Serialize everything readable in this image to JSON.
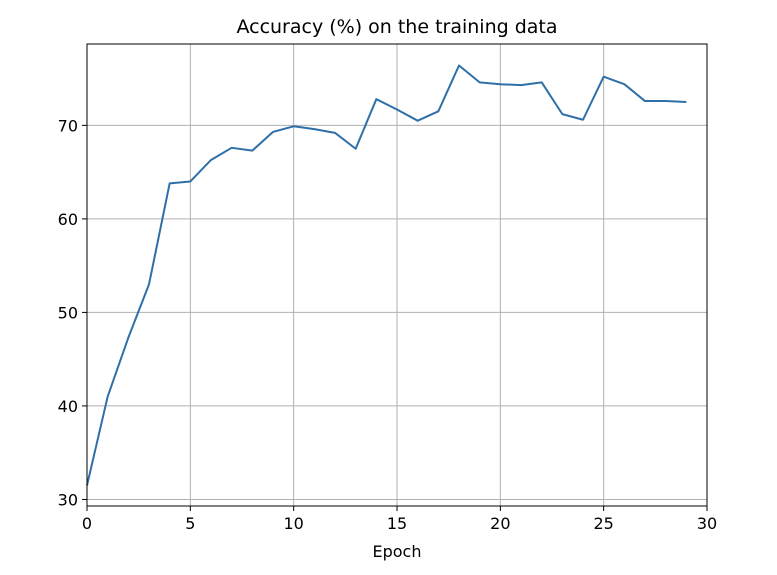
{
  "chart_data": {
    "type": "line",
    "title": "Accuracy (%) on the training data",
    "xlabel": "Epoch",
    "ylabel": "",
    "xlim": [
      0,
      30
    ],
    "ylim": [
      29.3,
      78.7
    ],
    "xticks": [
      0,
      5,
      10,
      15,
      20,
      25,
      30
    ],
    "yticks": [
      30,
      40,
      50,
      60,
      70
    ],
    "grid": true,
    "legend": false,
    "colors": {
      "series": "#2f6fa8",
      "grid": "#b0b0b0",
      "axes": "#000000",
      "background": "#ffffff"
    },
    "series": [
      {
        "x": [
          0,
          1,
          2,
          3,
          4,
          5,
          6,
          7,
          8,
          9,
          10,
          11,
          12,
          13,
          14,
          15,
          16,
          17,
          18,
          19,
          20,
          21,
          22,
          23,
          24,
          25,
          26,
          27,
          28,
          29
        ],
        "values": [
          31.5,
          41.0,
          47.3,
          53.0,
          63.8,
          64.0,
          66.3,
          67.6,
          67.3,
          69.3,
          69.9,
          69.6,
          69.2,
          67.5,
          72.8,
          71.7,
          70.5,
          71.5,
          76.4,
          74.6,
          74.4,
          74.3,
          74.6,
          71.2,
          70.6,
          75.2,
          74.4,
          72.6,
          72.6,
          72.5
        ]
      }
    ]
  }
}
